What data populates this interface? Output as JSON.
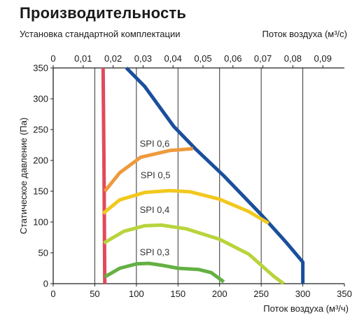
{
  "title": "Производительность",
  "subtitle": "Установка стандартной комплектации",
  "chart_data": {
    "type": "line",
    "x_top": {
      "label": "Поток воздуха (м³/с)",
      "range": [
        0,
        0.0972
      ],
      "ticks": [
        "0",
        "0,01",
        "0,02",
        "0,03",
        "0,04",
        "0,05",
        "0,06",
        "0,07",
        "0,08",
        "0,09"
      ]
    },
    "x": {
      "label": "Поток воздуха (м³/ч)",
      "range": [
        0,
        350
      ],
      "ticks": [
        "0",
        "50",
        "100",
        "150",
        "200",
        "250",
        "300",
        "350"
      ]
    },
    "y": {
      "label": "Статическое давление (Па)",
      "range": [
        0,
        350
      ],
      "ticks": [
        "0",
        "50",
        "100",
        "150",
        "200",
        "250",
        "300",
        "350"
      ]
    },
    "grid": "vertical",
    "series": [
      {
        "name": "",
        "color": "#1a4f9c",
        "points": [
          [
            88,
            350
          ],
          [
            110,
            320
          ],
          [
            145,
            255
          ],
          [
            170,
            220
          ],
          [
            205,
            175
          ],
          [
            250,
            112
          ],
          [
            280,
            67
          ],
          [
            300,
            35
          ],
          [
            300,
            0
          ]
        ]
      },
      {
        "name": "",
        "color": "#e04a5a",
        "points": [
          [
            60,
            350
          ],
          [
            61,
            200
          ],
          [
            62,
            0
          ]
        ]
      },
      {
        "name": "",
        "color": "#ee9a3d",
        "points": [
          [
            62,
            150
          ],
          [
            80,
            180
          ],
          [
            105,
            205
          ],
          [
            140,
            216
          ],
          [
            168,
            219
          ]
        ]
      },
      {
        "name": "",
        "color": "#f2c81e",
        "points": [
          [
            60,
            114
          ],
          [
            80,
            136
          ],
          [
            110,
            148
          ],
          [
            140,
            151
          ],
          [
            165,
            149
          ],
          [
            200,
            137
          ],
          [
            235,
            117
          ],
          [
            259,
            98
          ]
        ]
      },
      {
        "name": "",
        "color": "#b8d43c",
        "points": [
          [
            61,
            66
          ],
          [
            85,
            85
          ],
          [
            110,
            94
          ],
          [
            130,
            95
          ],
          [
            160,
            89
          ],
          [
            200,
            72
          ],
          [
            235,
            48
          ],
          [
            265,
            12
          ],
          [
            277,
            0
          ]
        ]
      },
      {
        "name": "",
        "color": "#64b043",
        "points": [
          [
            62,
            11
          ],
          [
            80,
            25
          ],
          [
            100,
            32
          ],
          [
            115,
            33
          ],
          [
            130,
            30
          ],
          [
            150,
            25
          ],
          [
            175,
            23
          ],
          [
            190,
            18
          ],
          [
            205,
            3
          ]
        ]
      }
    ],
    "annotations": [
      {
        "text": "SPI 0,6",
        "x": 104,
        "y": 222
      },
      {
        "text": "SPI 0,5",
        "x": 105,
        "y": 171
      },
      {
        "text": "SPI 0,4",
        "x": 104,
        "y": 115
      },
      {
        "text": "SPI 0,3",
        "x": 104,
        "y": 46
      }
    ]
  }
}
